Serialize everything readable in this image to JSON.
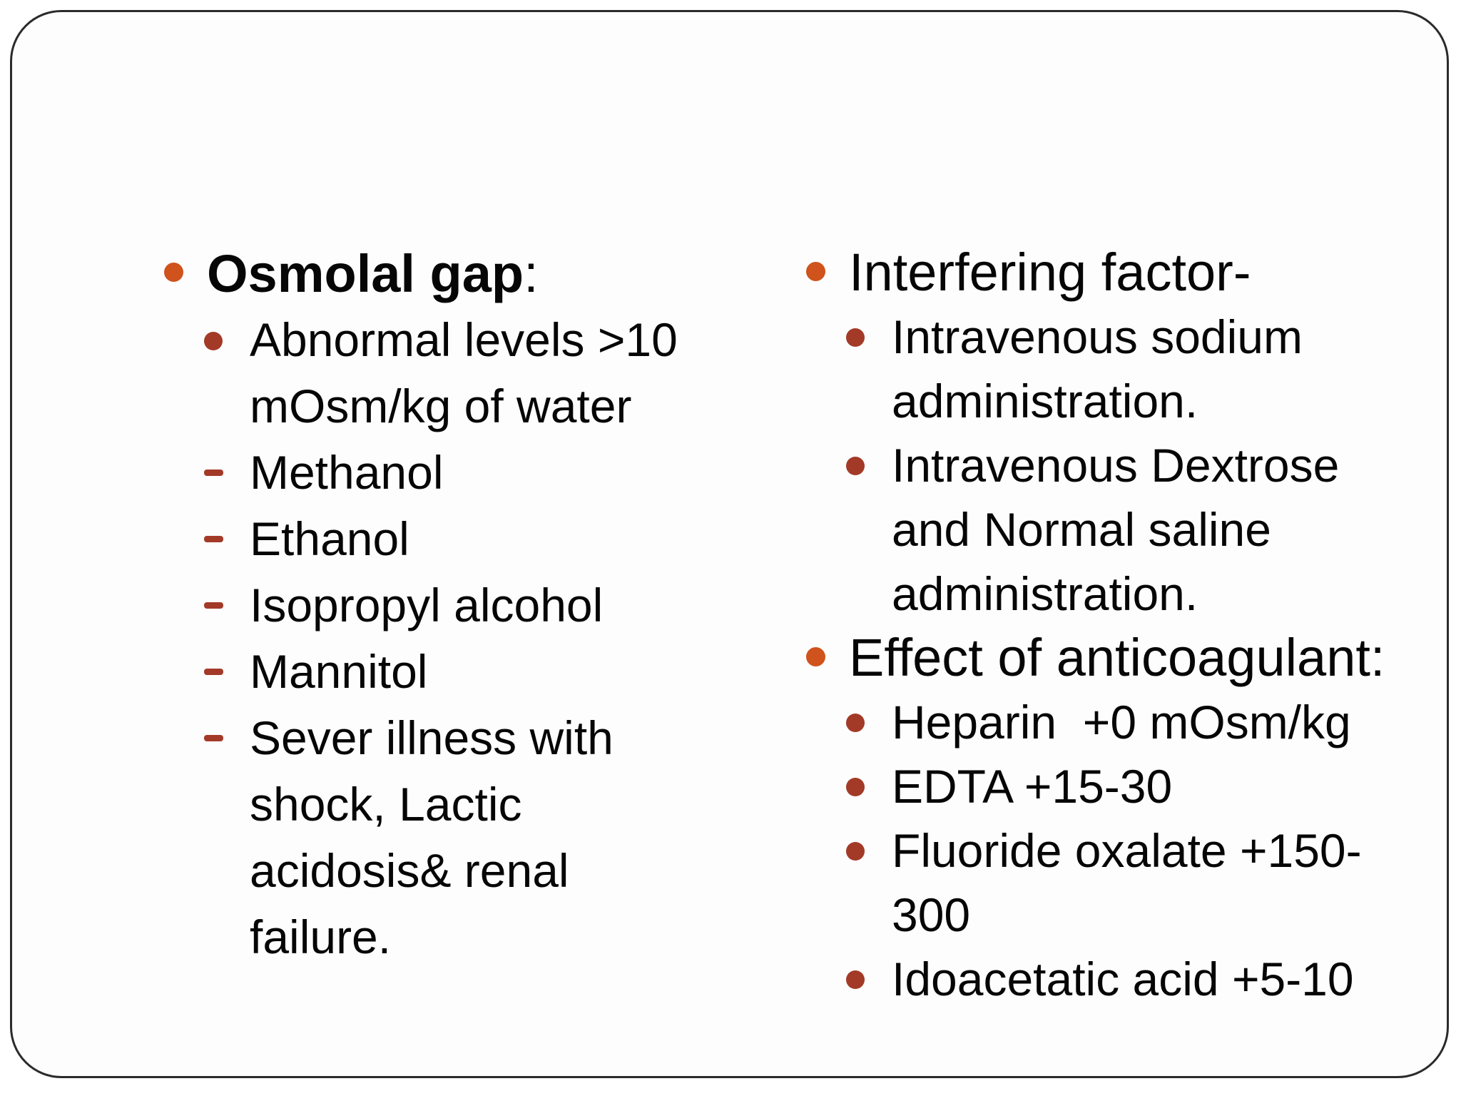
{
  "slide": {
    "colors": {
      "background": "#fdfdfd",
      "frame_border": "#2b2b2b",
      "bullet_level1": "#d0521c",
      "bullet_level2": "#a33a28",
      "dash": "#a33a28",
      "text": "#060606"
    },
    "left_column": {
      "items": [
        {
          "level": 1,
          "marker": "circle",
          "lead": "Osmolal gap",
          "lead_bold": true,
          "rest": ":"
        },
        {
          "level": 2,
          "marker": "circle",
          "text": "Abnormal levels >10 mOsm/kg of water"
        },
        {
          "level": 2,
          "marker": "dash",
          "text": "Methanol"
        },
        {
          "level": 2,
          "marker": "dash",
          "text": "Ethanol"
        },
        {
          "level": 2,
          "marker": "dash",
          "text": "Isopropyl alcohol"
        },
        {
          "level": 2,
          "marker": "dash",
          "text": "Mannitol"
        },
        {
          "level": 2,
          "marker": "dash",
          "text": "Sever illness with shock, Lactic acidosis& renal failure."
        }
      ]
    },
    "right_column": {
      "items": [
        {
          "level": 1,
          "marker": "circle",
          "text": "Interfering factor-"
        },
        {
          "level": 2,
          "marker": "circle",
          "text": "Intravenous sodium administration."
        },
        {
          "level": 2,
          "marker": "circle",
          "text": "Intravenous Dextrose and Normal saline administration."
        },
        {
          "level": 1,
          "marker": "circle",
          "text": "Effect of anticoagulant:"
        },
        {
          "level": 2,
          "marker": "circle",
          "text": "Heparin  +0 mOsm/kg"
        },
        {
          "level": 2,
          "marker": "circle",
          "text": "EDTA +15-30"
        },
        {
          "level": 2,
          "marker": "circle",
          "text": "Fluoride oxalate +150-300"
        },
        {
          "level": 2,
          "marker": "circle",
          "text": "Idoacetatic acid +5-10"
        }
      ]
    }
  }
}
